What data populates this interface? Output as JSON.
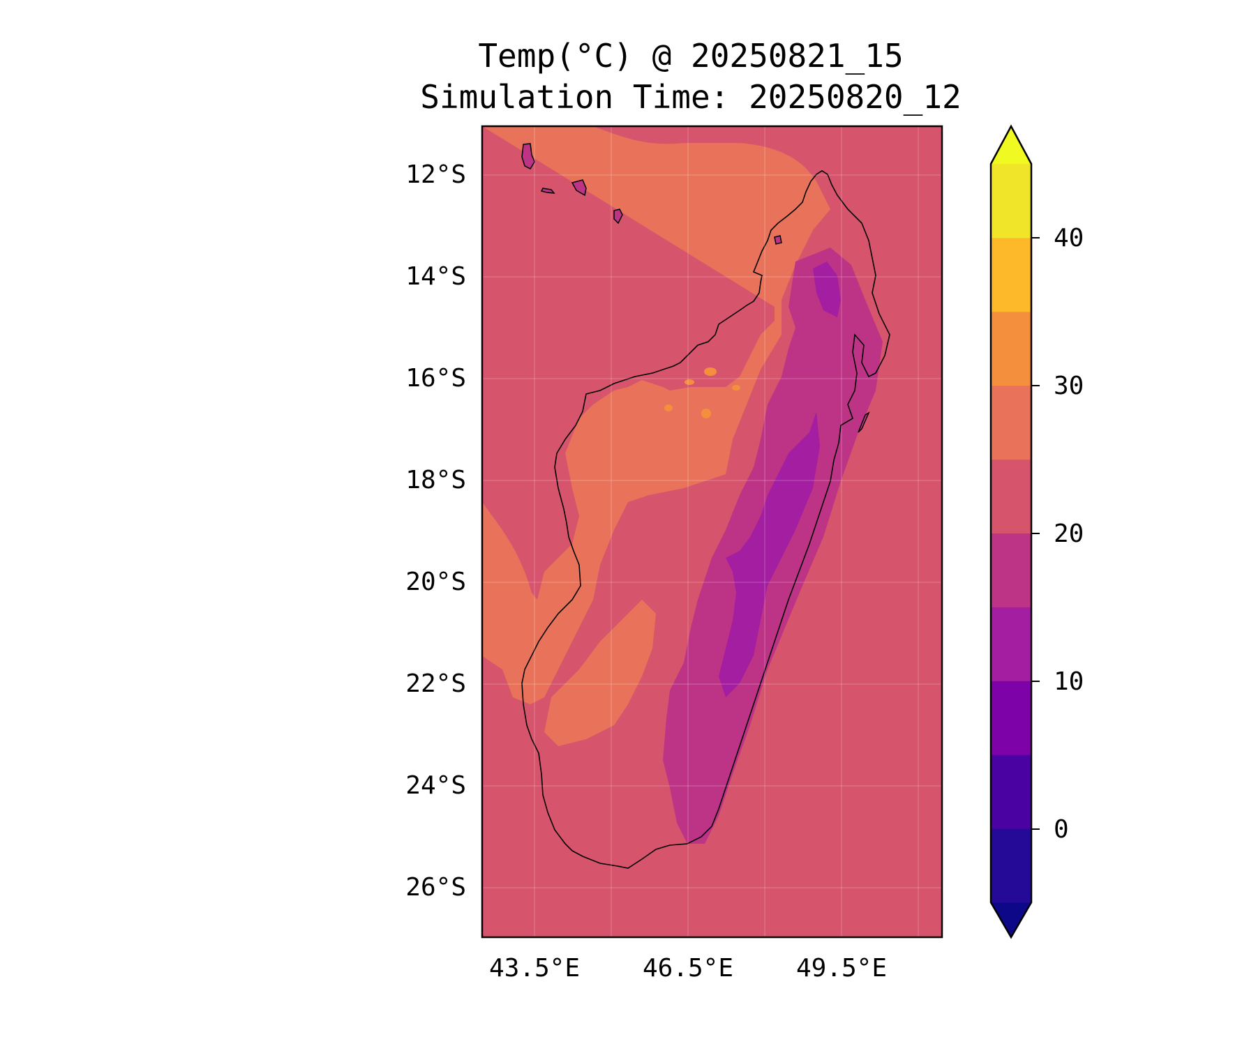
{
  "title": {
    "line1": "Temp(°C) @ 20250821_15",
    "line2": "Simulation Time: 20250820_12"
  },
  "map": {
    "region": "Madagascar",
    "lat_ticks": [
      "12°S",
      "14°S",
      "16°S",
      "18°S",
      "20°S",
      "22°S",
      "24°S",
      "26°S"
    ],
    "lon_ticks": [
      "43.5°E",
      "46.5°E",
      "49.5°E"
    ],
    "extent": {
      "lon_min": 41.5,
      "lon_max": 51.5,
      "lat_min": -27.0,
      "lat_max": -11.0
    },
    "colors": {
      "ocean": "#d6546c",
      "band_25_30": "#e8735a",
      "band_30_35": "#f48f3e",
      "band_15_20": "#bd3487",
      "band_10_15": "#a31ea0",
      "coastline": "#000000"
    }
  },
  "colorbar": {
    "tick_labels": [
      "40",
      "30",
      "20",
      "10",
      "0"
    ],
    "levels": [
      -5,
      0,
      5,
      10,
      15,
      20,
      25,
      30,
      35,
      40,
      45
    ],
    "extend": "both",
    "colors": [
      "#0d0887",
      "#240a96",
      "#4a02a2",
      "#7d03a8",
      "#a31ea0",
      "#bd3487",
      "#d6546c",
      "#e8735a",
      "#f48f3e",
      "#feb92b",
      "#f0e529",
      "#f0f921"
    ]
  }
}
